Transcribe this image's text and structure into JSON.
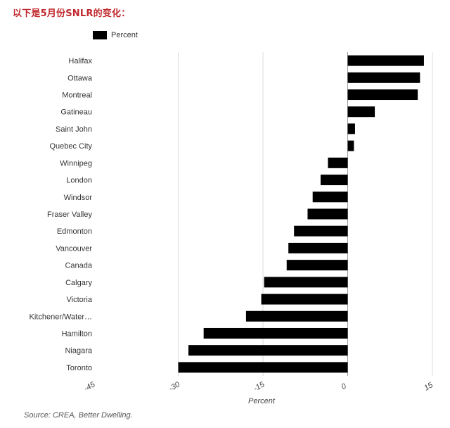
{
  "heading": "以下是5月份SNLR的变化：",
  "source": "Source: CREA, Better Dwelling.",
  "chart_data": {
    "type": "bar",
    "orientation": "horizontal",
    "title": "",
    "xlabel": "Percent",
    "ylabel": "",
    "xlim": [
      -45,
      15
    ],
    "xticks": [
      -45,
      -30,
      -15,
      0,
      15
    ],
    "grid": true,
    "legend_position": "top-left",
    "bar_color": "#000000",
    "categories": [
      "Halifax",
      "Ottawa",
      "Montreal",
      "Gatineau",
      "Saint John",
      "Quebec City",
      "Winnipeg",
      "London",
      "Windsor",
      "Fraser Valley",
      "Edmonton",
      "Vancouver",
      "Canada",
      "Calgary",
      "Victoria",
      "Kitchener/Water…",
      "Hamilton",
      "Niagara",
      "Toronto"
    ],
    "series": [
      {
        "name": "Percent",
        "values": [
          13.5,
          12.8,
          12.4,
          4.8,
          1.3,
          1.1,
          -3.5,
          -4.8,
          -6.2,
          -7.1,
          -9.5,
          -10.5,
          -10.8,
          -14.8,
          -15.3,
          -18.0,
          -25.5,
          -28.2,
          -30.0
        ]
      }
    ]
  }
}
